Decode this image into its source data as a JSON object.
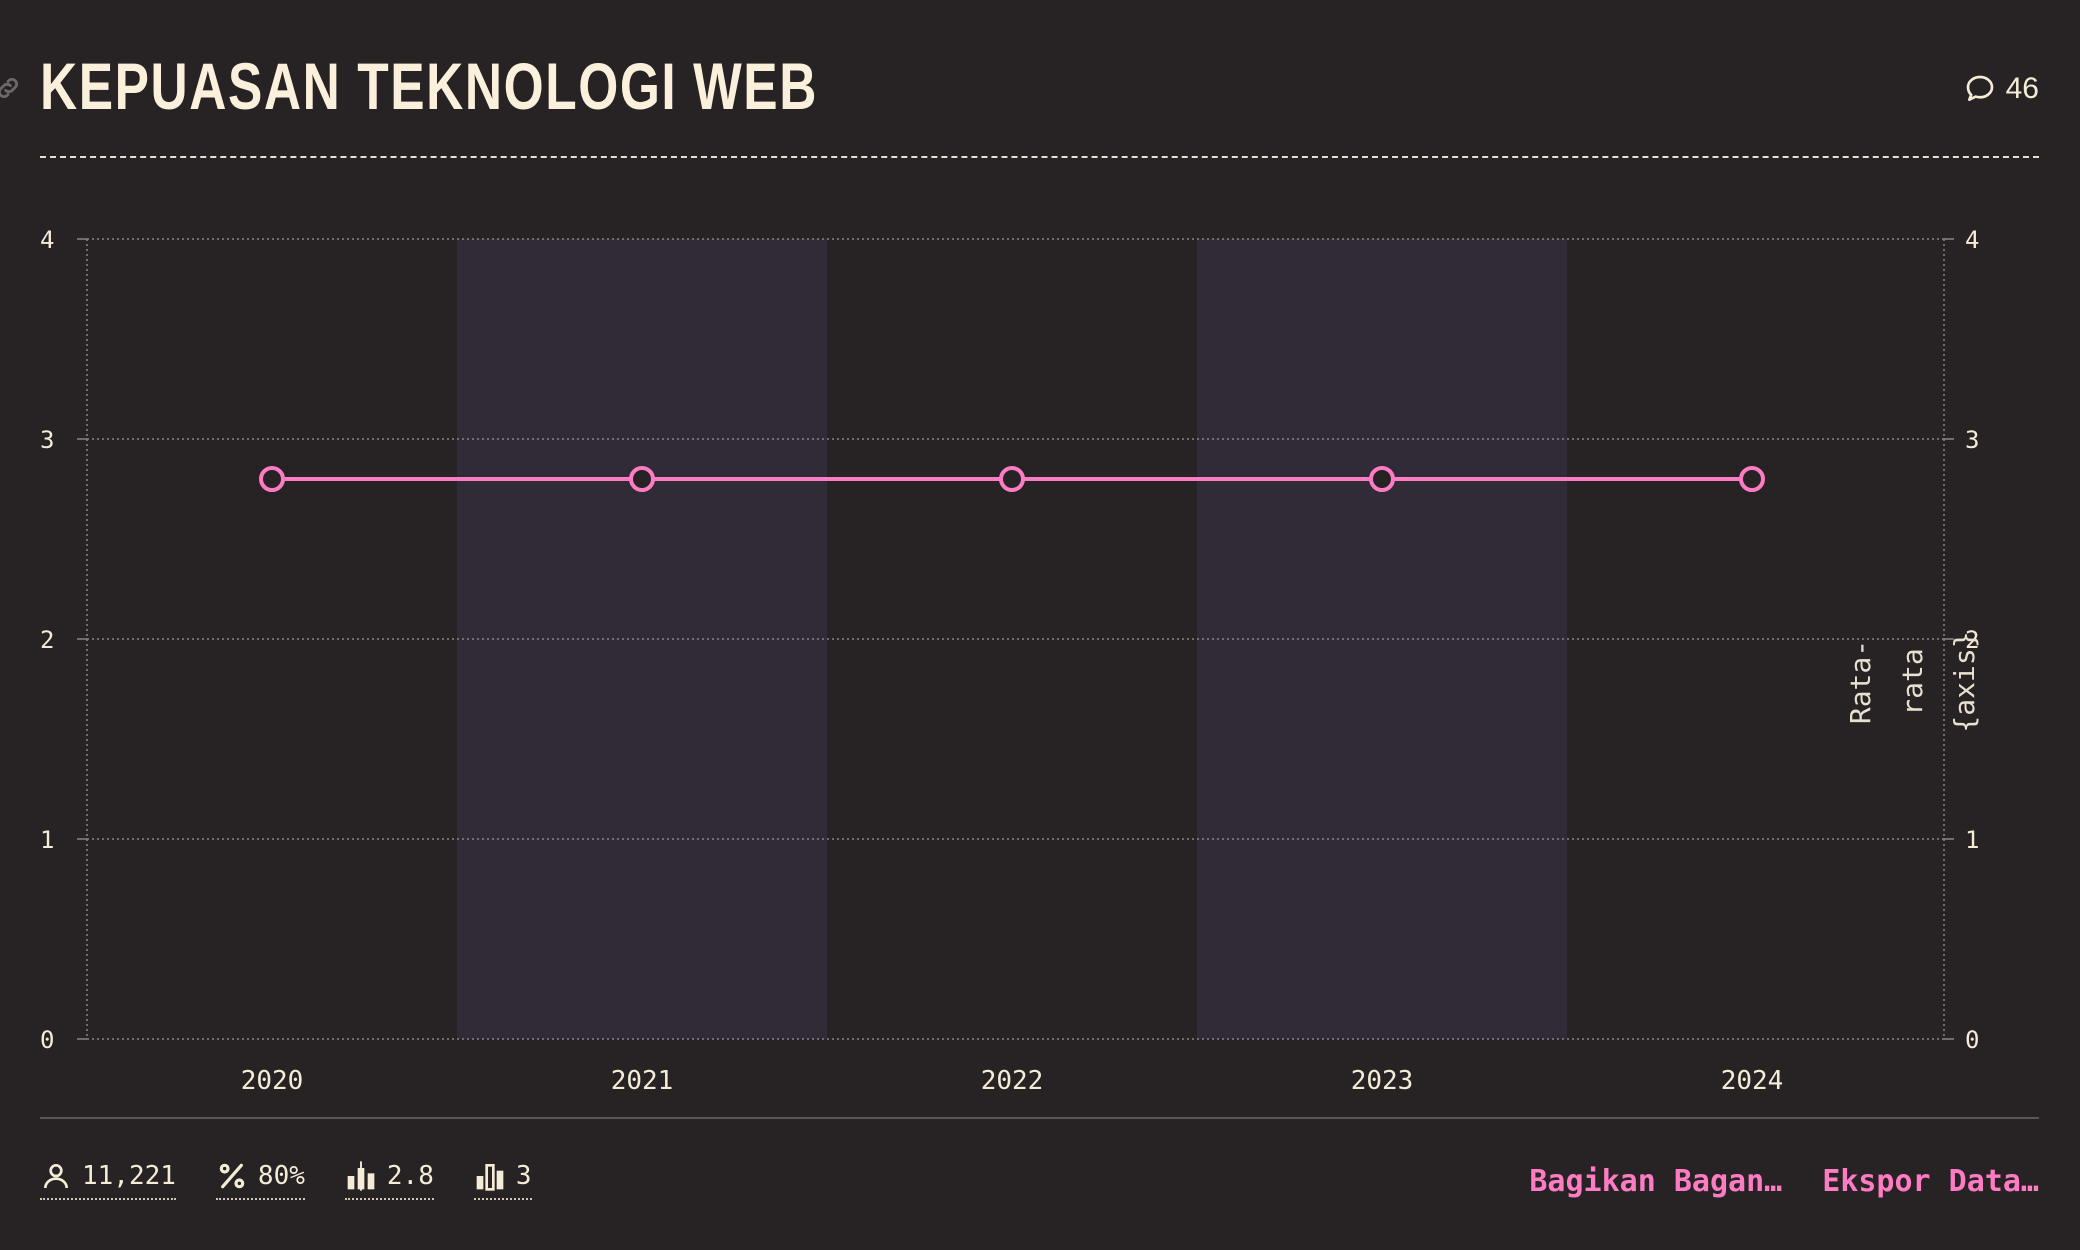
{
  "header": {
    "title": "KEPUASAN TEKNOLOGI WEB",
    "comment_count": "46"
  },
  "stats": [
    {
      "icon": "user-icon",
      "value": "11,221"
    },
    {
      "icon": "percent-icon",
      "value": "80%"
    },
    {
      "icon": "candlestick-icon",
      "value": "2.8"
    },
    {
      "icon": "bar-chart-icon",
      "value": "3"
    }
  ],
  "actions": {
    "share_label": "Bagikan Bagan…",
    "export_label": "Ekspor Data…"
  },
  "colors": {
    "background": "#272324",
    "accent": "#ff7bc3",
    "band": "#302b37",
    "text": "#f5ecd8"
  },
  "chart_data": {
    "type": "line",
    "categories": [
      "2020",
      "2021",
      "2022",
      "2023",
      "2024"
    ],
    "series": [
      {
        "values": [
          2.8,
          2.8,
          2.8,
          2.8,
          2.8
        ]
      }
    ],
    "ylim": [
      0,
      4
    ],
    "yticks": [
      "0",
      "1",
      "2",
      "3",
      "4"
    ],
    "y2label": "Rata-rata {axis}",
    "y2label_lines": [
      "Rata-",
      "rata",
      "{axis}"
    ],
    "grid": true,
    "alternating_bands": true
  }
}
